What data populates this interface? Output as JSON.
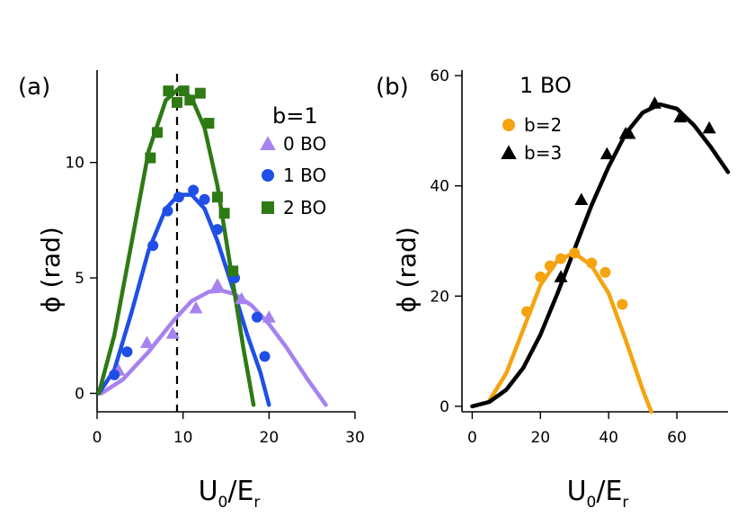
{
  "chart_data": [
    {
      "type": "scatter",
      "panel_label": "(a)",
      "xlabel": "U0/Er",
      "ylabel": "ϕ (rad)",
      "xlim": [
        0,
        30
      ],
      "ylim": [
        -0.8,
        14
      ],
      "xticks": [
        "0",
        "10",
        "20",
        "30"
      ],
      "yticks": [
        "0",
        "5",
        "10"
      ],
      "legend_title": "b=1",
      "reference_line_x": 9.3,
      "series": [
        {
          "name": "0 BO",
          "color": "#a682f0",
          "marker": "triangle",
          "points": [
            [
              2.5,
              1.0
            ],
            [
              5.8,
              2.2
            ],
            [
              8.8,
              2.6
            ],
            [
              11.5,
              3.7
            ],
            [
              14.0,
              4.7
            ],
            [
              16.8,
              4.1
            ],
            [
              20.0,
              3.3
            ]
          ],
          "fit": [
            [
              0.5,
              0.0
            ],
            [
              3,
              0.6
            ],
            [
              6,
              1.8
            ],
            [
              9,
              3.2
            ],
            [
              11,
              4.0
            ],
            [
              13,
              4.4
            ],
            [
              14.5,
              4.45
            ],
            [
              16,
              4.3
            ],
            [
              18,
              3.8
            ],
            [
              20,
              3.0
            ],
            [
              22,
              2.0
            ],
            [
              24.5,
              0.6
            ],
            [
              26.6,
              -0.5
            ]
          ]
        },
        {
          "name": "1 BO",
          "color": "#1f4fe6",
          "marker": "circle",
          "points": [
            [
              2.0,
              0.8
            ],
            [
              3.5,
              1.8
            ],
            [
              6.5,
              6.4
            ],
            [
              8.2,
              7.9
            ],
            [
              9.5,
              8.5
            ],
            [
              11.2,
              8.8
            ],
            [
              12.5,
              8.4
            ],
            [
              14.0,
              7.1
            ],
            [
              16.0,
              5.0
            ],
            [
              18.6,
              3.3
            ],
            [
              19.5,
              1.6
            ]
          ],
          "fit": [
            [
              0.2,
              0.0
            ],
            [
              2,
              1.0
            ],
            [
              4,
              3.5
            ],
            [
              6,
              6.2
            ],
            [
              8,
              8.0
            ],
            [
              9.5,
              8.6
            ],
            [
              11,
              8.6
            ],
            [
              12.5,
              8.0
            ],
            [
              14,
              6.6
            ],
            [
              16,
              4.3
            ],
            [
              17.5,
              2.5
            ],
            [
              19,
              0.9
            ],
            [
              20,
              -0.5
            ]
          ]
        },
        {
          "name": "2 BO",
          "color": "#2e7a14",
          "marker": "square",
          "points": [
            [
              6.2,
              10.2
            ],
            [
              7.0,
              11.3
            ],
            [
              8.3,
              13.1
            ],
            [
              9.3,
              12.6
            ],
            [
              10.1,
              13.1
            ],
            [
              10.8,
              12.7
            ],
            [
              12.0,
              13.0
            ],
            [
              13.0,
              11.7
            ],
            [
              14.0,
              8.5
            ],
            [
              14.8,
              7.8
            ],
            [
              15.8,
              5.3
            ]
          ],
          "fit": [
            [
              0.2,
              0.0
            ],
            [
              2,
              2.5
            ],
            [
              4,
              6.5
            ],
            [
              6,
              10.5
            ],
            [
              8,
              12.7
            ],
            [
              9.5,
              13.2
            ],
            [
              11,
              12.8
            ],
            [
              12.5,
              11.5
            ],
            [
              14,
              9.0
            ],
            [
              15.5,
              5.5
            ],
            [
              17,
              2.0
            ],
            [
              18.2,
              -0.5
            ]
          ]
        }
      ]
    },
    {
      "type": "scatter",
      "panel_label": "(b)",
      "xlabel": "U0/Er",
      "ylabel": "ϕ (rad)",
      "xlim": [
        -3,
        75
      ],
      "ylim": [
        -1,
        61
      ],
      "xticks": [
        "0",
        "20",
        "40",
        "60"
      ],
      "yticks": [
        "0",
        "20",
        "40",
        "60"
      ],
      "legend_title": "1 BO",
      "series": [
        {
          "name": "b=2",
          "color": "#f5a30f",
          "marker": "circle",
          "points": [
            [
              16,
              17.2
            ],
            [
              20,
              23.5
            ],
            [
              22.8,
              25.5
            ],
            [
              26,
              26.8
            ],
            [
              30,
              27.8
            ],
            [
              35,
              26.0
            ],
            [
              39,
              24.3
            ],
            [
              44,
              18.5
            ]
          ],
          "fit": [
            [
              5,
              1.0
            ],
            [
              10,
              6.0
            ],
            [
              15,
              14.0
            ],
            [
              20,
              22.0
            ],
            [
              25,
              26.5
            ],
            [
              30,
              27.8
            ],
            [
              35,
              25.5
            ],
            [
              40,
              20.5
            ],
            [
              45,
              12.0
            ],
            [
              50,
              3.0
            ],
            [
              52.5,
              -1.0
            ]
          ]
        },
        {
          "name": "b=3",
          "color": "#000000",
          "marker": "triangle",
          "points": [
            [
              26,
              23.5
            ],
            [
              32,
              37.5
            ],
            [
              39.5,
              45.8
            ],
            [
              45,
              49.5
            ],
            [
              46,
              49.5
            ],
            [
              53.5,
              55.0
            ],
            [
              61,
              52.5
            ],
            [
              69.5,
              50.5
            ]
          ],
          "fit": [
            [
              0,
              0.0
            ],
            [
              5,
              0.8
            ],
            [
              10,
              3.0
            ],
            [
              15,
              7.0
            ],
            [
              20,
              13.0
            ],
            [
              25,
              20.5
            ],
            [
              30,
              28.5
            ],
            [
              35,
              36.5
            ],
            [
              40,
              43.5
            ],
            [
              45,
              49.5
            ],
            [
              50,
              53.3
            ],
            [
              55,
              54.8
            ],
            [
              60,
              54.0
            ],
            [
              65,
              51.0
            ],
            [
              70,
              47.0
            ],
            [
              75,
              42.5
            ]
          ]
        }
      ]
    }
  ]
}
